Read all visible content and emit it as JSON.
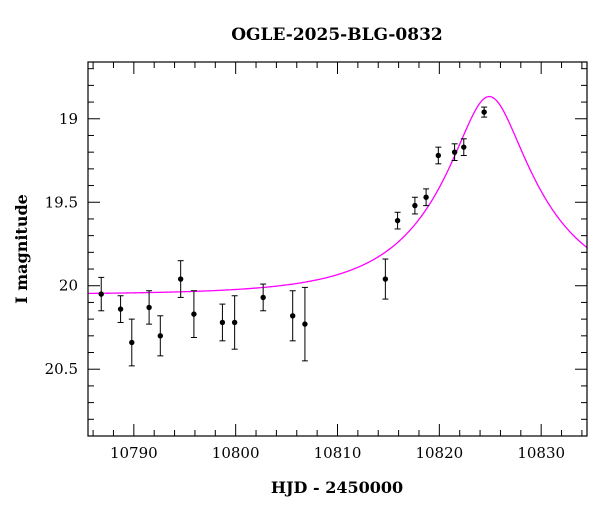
{
  "chart_data": {
    "type": "scatter",
    "title": "OGLE-2025-BLG-0832",
    "xlabel": "HJD - 2450000",
    "ylabel": "I magnitude",
    "xlim": [
      10785.5,
      10834.5
    ],
    "ylim": [
      20.9,
      18.66
    ],
    "y_inverted": true,
    "x_major_ticks": [
      10790,
      10800,
      10810,
      10820,
      10830
    ],
    "x_tick_labels": [
      "10790",
      "10800",
      "10810",
      "10820",
      "10830"
    ],
    "y_major_ticks": [
      19,
      19.5,
      20,
      20.5
    ],
    "y_tick_labels": [
      "19",
      "19.5",
      "20",
      "20.5"
    ],
    "grid": false,
    "model_color": "#ff00ff",
    "data_color": "#000000",
    "series": [
      {
        "type": "errorbar",
        "x": [
          10786.8,
          10788.7,
          10789.8,
          10791.5,
          10792.6,
          10794.6,
          10795.9,
          10798.7,
          10799.9,
          10802.7,
          10805.6,
          10806.8,
          10814.7,
          10815.9,
          10817.6,
          10818.7,
          10819.9,
          10821.5,
          10822.4,
          10824.4
        ],
        "y": [
          20.05,
          20.14,
          20.34,
          20.13,
          20.3,
          19.96,
          20.17,
          20.22,
          20.22,
          20.07,
          20.18,
          20.23,
          19.96,
          19.61,
          19.52,
          19.47,
          19.22,
          19.2,
          19.17,
          18.96
        ],
        "yerr": [
          0.1,
          0.08,
          0.14,
          0.1,
          0.12,
          0.11,
          0.14,
          0.11,
          0.16,
          0.08,
          0.15,
          0.22,
          0.12,
          0.05,
          0.05,
          0.05,
          0.05,
          0.05,
          0.05,
          0.03
        ]
      },
      {
        "type": "line",
        "model": "paczynski",
        "t0": 10824.9,
        "tE": 10.5,
        "u0": 0.296,
        "I_source": 20.3,
        "I_blend": 21.78,
        "x_range": [
          10785.5,
          10834.5
        ]
      }
    ]
  }
}
